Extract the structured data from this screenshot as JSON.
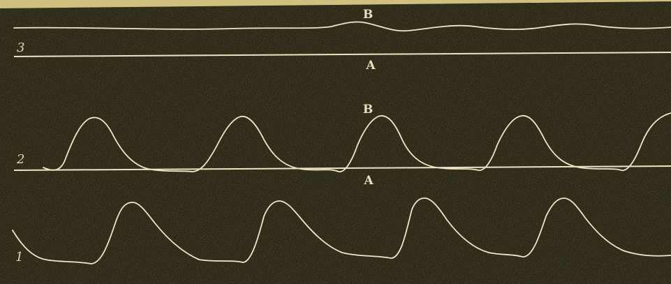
{
  "figure": {
    "colors": {
      "paper": "#cfc07f",
      "smoked_ground": "#0d0c05",
      "trace": "#efe6cc"
    },
    "traces": [
      {
        "number": "3",
        "upper_label": "B",
        "lower_label": "A"
      },
      {
        "number": "2",
        "upper_label": "B",
        "lower_label": "A"
      },
      {
        "number": "1"
      }
    ]
  }
}
